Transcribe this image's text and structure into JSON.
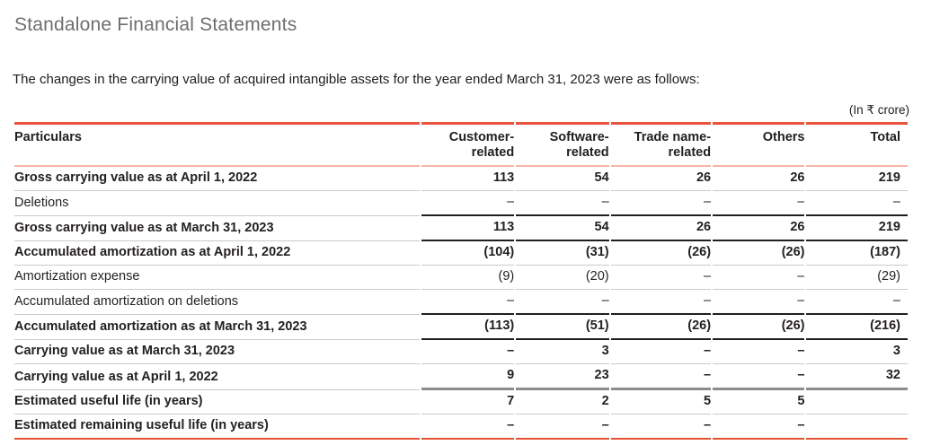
{
  "page": {
    "section_title": "Standalone Financial Statements",
    "intro": "The changes in the carrying value of acquired intangible assets for the year ended March 31, 2023 were as follows:",
    "unit_note": "(In ₹ crore)"
  },
  "colors": {
    "accent_red_top_rule": "#e8533c",
    "header_underline_pink": "#f5b3a4",
    "row_rule_gray": "#c9cacc",
    "row_rule_black": "#1f1f1f",
    "row_rule_dark_gray": "#8a8c8f",
    "bottom_rule_red": "#e2512e",
    "section_title_gray": "#6d6e71",
    "text_black": "#231f20"
  },
  "table": {
    "headers": [
      {
        "line1": "Particulars",
        "line2": ""
      },
      {
        "line1": "Customer-",
        "line2": "related"
      },
      {
        "line1": "Software-",
        "line2": "related"
      },
      {
        "line1": "Trade name-",
        "line2": "related"
      },
      {
        "line1": "Others",
        "line2": ""
      },
      {
        "line1": "Total",
        "line2": ""
      }
    ],
    "rows": [
      {
        "label": "Gross carrying value as at April 1, 2022",
        "bold": true,
        "rule": "gray",
        "values": [
          "113",
          "54",
          "26",
          "26",
          "219"
        ]
      },
      {
        "label": "Deletions",
        "bold": false,
        "rule": "black",
        "values": [
          "–",
          "–",
          "–",
          "–",
          "–"
        ]
      },
      {
        "label": "Gross carrying value as at March 31, 2023",
        "bold": true,
        "rule": "black",
        "values": [
          "113",
          "54",
          "26",
          "26",
          "219"
        ]
      },
      {
        "label": "Accumulated amortization as at April 1, 2022",
        "bold": true,
        "rule": "gray",
        "values": [
          "(104)",
          "(31)",
          "(26)",
          "(26)",
          "(187)"
        ]
      },
      {
        "label": "Amortization expense",
        "bold": false,
        "rule": "gray",
        "values": [
          "(9)",
          "(20)",
          "–",
          "–",
          "(29)"
        ]
      },
      {
        "label": "Accumulated amortization on deletions",
        "bold": false,
        "rule": "black",
        "values": [
          "–",
          "–",
          "–",
          "–",
          "–"
        ]
      },
      {
        "label": "Accumulated amortization as at March 31, 2023",
        "bold": true,
        "rule": "black",
        "values": [
          "(113)",
          "(51)",
          "(26)",
          "(26)",
          "(216)"
        ]
      },
      {
        "label": "Carrying value as at March 31, 2023",
        "bold": true,
        "rule": "gray",
        "values": [
          "–",
          "3",
          "–",
          "–",
          "3"
        ]
      },
      {
        "label": "Carrying value as at April 1, 2022",
        "bold": true,
        "rule": "dark",
        "values": [
          "9",
          "23",
          "–",
          "–",
          "32"
        ]
      },
      {
        "label": "Estimated useful life (in years)",
        "bold": true,
        "rule": "gray",
        "values": [
          "7",
          "2",
          "5",
          "5",
          ""
        ]
      },
      {
        "label": "Estimated remaining useful life (in years)",
        "bold": true,
        "rule": "red",
        "values": [
          "–",
          "–",
          "–",
          "–",
          ""
        ]
      }
    ]
  }
}
